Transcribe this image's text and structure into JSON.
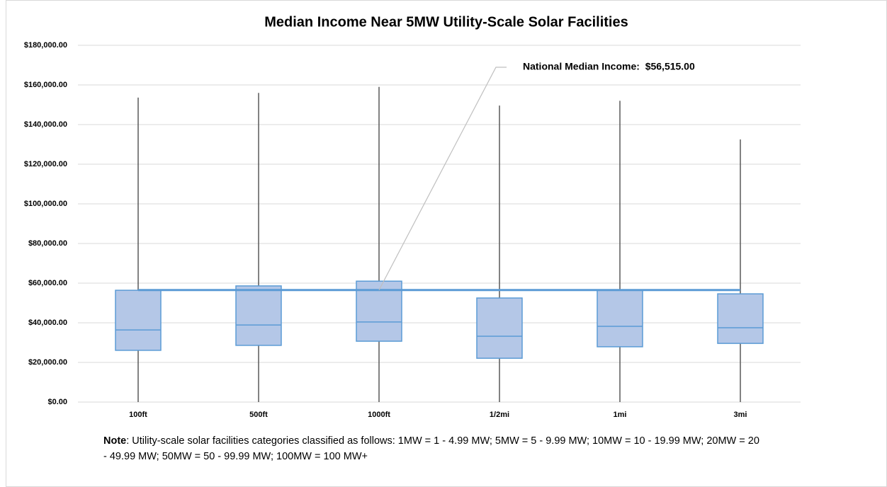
{
  "chart_data": {
    "type": "box",
    "title": "Median Income Near 5MW Utility-Scale Solar Facilities",
    "categories": [
      "100ft",
      "500ft",
      "1000ft",
      "1/2mi",
      "1mi",
      "3mi"
    ],
    "boxes": [
      {
        "min": 0,
        "q1": 26100,
        "median": 36400,
        "q3": 56400,
        "max": 153600
      },
      {
        "min": 0,
        "q1": 28600,
        "median": 38900,
        "q3": 58600,
        "max": 156000
      },
      {
        "min": 0,
        "q1": 30700,
        "median": 40400,
        "q3": 61000,
        "max": 159000
      },
      {
        "min": 0,
        "q1": 22100,
        "median": 33200,
        "q3": 52500,
        "max": 149600
      },
      {
        "min": 0,
        "q1": 27900,
        "median": 38200,
        "q3": 56400,
        "max": 152000
      },
      {
        "min": 0,
        "q1": 29600,
        "median": 37500,
        "q3": 54600,
        "max": 132500
      }
    ],
    "box_color": "#b4c7e7",
    "box_edge_color": "#5b9bd5",
    "whisker_color": "#595959",
    "reference": {
      "value": 56515,
      "label": "National Median Income:  $56,515.00",
      "color": "#5b9bd5"
    },
    "ylim": [
      0,
      180000
    ],
    "yticks": [
      {
        "value": 0,
        "label": "$0.00"
      },
      {
        "value": 20000,
        "label": "$20,000.00"
      },
      {
        "value": 40000,
        "label": "$40,000.00"
      },
      {
        "value": 60000,
        "label": "$60,000.00"
      },
      {
        "value": 80000,
        "label": "$80,000.00"
      },
      {
        "value": 100000,
        "label": "$100,000.00"
      },
      {
        "value": 120000,
        "label": "$120,000.00"
      },
      {
        "value": 140000,
        "label": "$140,000.00"
      },
      {
        "value": 160000,
        "label": "$160,000.00"
      },
      {
        "value": 180000,
        "label": "$180,000.00"
      }
    ],
    "grid": true,
    "note": {
      "label": "Note",
      "text": ": Utility-scale solar facilities categories classified as follows: 1MW = 1 - 4.99 MW; 5MW = 5 - 9.99 MW; 10MW = 10 - 19.99 MW; 20MW = 20 - 49.99 MW; 50MW = 50 - 99.99 MW; 100MW = 100 MW+"
    }
  }
}
